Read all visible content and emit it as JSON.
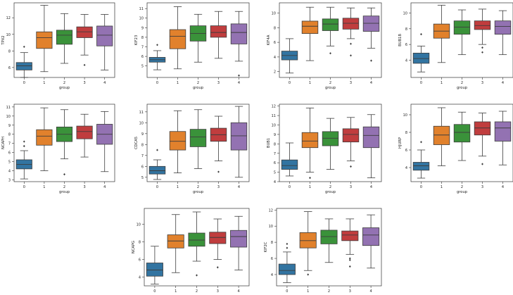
{
  "colors": {
    "g0": "#3274a1",
    "g1": "#e1812c",
    "g2": "#3a923a",
    "g3": "#c03d3e",
    "g4": "#9372b2"
  },
  "chart_data": [
    {
      "type": "boxplot",
      "ylabel": "TPX2",
      "xlabel": "group",
      "categories": [
        "0",
        "1",
        "2",
        "3",
        "4"
      ],
      "ylim": [
        4.8,
        13.8
      ],
      "yticks": [
        6,
        8,
        10,
        12
      ],
      "boxes": [
        {
          "whislo": 4.8,
          "q1": 5.7,
          "med": 6.2,
          "q3": 6.6,
          "whishi": 7.8,
          "fliers": [
            8.5
          ]
        },
        {
          "whislo": 5.5,
          "q1": 8.3,
          "med": 9.6,
          "q3": 10.3,
          "whishi": 13.5,
          "fliers": []
        },
        {
          "whislo": 6.5,
          "q1": 8.8,
          "med": 9.9,
          "q3": 10.5,
          "whishi": 12.5,
          "fliers": []
        },
        {
          "whislo": 7.5,
          "q1": 9.6,
          "med": 10.3,
          "q3": 10.9,
          "whishi": 12.4,
          "fliers": [
            6.3
          ]
        },
        {
          "whislo": 5.7,
          "q1": 8.6,
          "med": 9.9,
          "q3": 11.0,
          "whishi": 12.4,
          "fliers": []
        }
      ]
    },
    {
      "type": "boxplot",
      "ylabel": "KIF23",
      "xlabel": "group",
      "categories": [
        "0",
        "1",
        "2",
        "3",
        "4"
      ],
      "ylim": [
        3.8,
        11.6
      ],
      "yticks": [
        5,
        6,
        7,
        8,
        9,
        10,
        11
      ],
      "boxes": [
        {
          "whislo": 4.6,
          "q1": 5.4,
          "med": 5.65,
          "q3": 5.9,
          "whishi": 6.6,
          "fliers": [
            7.2
          ]
        },
        {
          "whislo": 4.7,
          "q1": 6.8,
          "med": 8.1,
          "q3": 8.8,
          "whishi": 11.2,
          "fliers": []
        },
        {
          "whislo": 5.4,
          "q1": 7.6,
          "med": 8.4,
          "q3": 9.2,
          "whishi": 10.4,
          "fliers": []
        },
        {
          "whislo": 5.8,
          "q1": 8.0,
          "med": 8.5,
          "q3": 9.2,
          "whishi": 10.7,
          "fliers": []
        },
        {
          "whislo": 5.5,
          "q1": 7.3,
          "med": 8.5,
          "q3": 9.4,
          "whishi": 10.7,
          "fliers": [
            4.0
          ]
        }
      ]
    },
    {
      "type": "boxplot",
      "ylabel": "KIF4A",
      "xlabel": "group",
      "categories": [
        "0",
        "1",
        "2",
        "3",
        "4"
      ],
      "ylim": [
        1.2,
        11.4
      ],
      "yticks": [
        2,
        4,
        6,
        8,
        10
      ],
      "boxes": [
        {
          "whislo": 1.8,
          "q1": 3.6,
          "med": 4.2,
          "q3": 4.8,
          "whishi": 6.5,
          "fliers": []
        },
        {
          "whislo": 3.5,
          "q1": 7.2,
          "med": 8.2,
          "q3": 8.9,
          "whishi": 10.8,
          "fliers": []
        },
        {
          "whislo": 5.5,
          "q1": 7.6,
          "med": 8.5,
          "q3": 9.2,
          "whishi": 10.8,
          "fliers": [
            4.5
          ]
        },
        {
          "whislo": 6.5,
          "q1": 7.8,
          "med": 8.6,
          "q3": 9.3,
          "whishi": 10.7,
          "fliers": [
            5.8,
            4.2
          ]
        },
        {
          "whislo": 5.2,
          "q1": 7.5,
          "med": 8.6,
          "q3": 9.6,
          "whishi": 10.7,
          "fliers": [
            3.5
          ]
        }
      ]
    },
    {
      "type": "boxplot",
      "ylabel": "BUB1B",
      "xlabel": "group",
      "categories": [
        "0",
        "1",
        "2",
        "3",
        "4"
      ],
      "ylim": [
        1.8,
        11.3
      ],
      "yticks": [
        4,
        6,
        8,
        10
      ],
      "boxes": [
        {
          "whislo": 2.5,
          "q1": 3.6,
          "med": 4.2,
          "q3": 4.9,
          "whishi": 5.8,
          "fliers": [
            7.3
          ]
        },
        {
          "whislo": 3.7,
          "q1": 6.8,
          "med": 7.7,
          "q3": 8.6,
          "whishi": 11.0,
          "fliers": []
        },
        {
          "whislo": 4.7,
          "q1": 7.3,
          "med": 8.2,
          "q3": 9.0,
          "whishi": 10.4,
          "fliers": []
        },
        {
          "whislo": 6.0,
          "q1": 7.9,
          "med": 8.4,
          "q3": 9.0,
          "whishi": 10.5,
          "fliers": [
            5.6,
            5.0
          ]
        },
        {
          "whislo": 4.7,
          "q1": 7.3,
          "med": 8.3,
          "q3": 9.0,
          "whishi": 10.3,
          "fliers": []
        }
      ]
    },
    {
      "type": "boxplot",
      "ylabel": "NCAPH",
      "xlabel": "group",
      "categories": [
        "0",
        "1",
        "2",
        "3",
        "4"
      ],
      "ylim": [
        2.8,
        11.3
      ],
      "yticks": [
        3,
        4,
        5,
        6,
        7,
        8,
        9,
        10,
        11
      ],
      "boxes": [
        {
          "whislo": 3.1,
          "q1": 4.2,
          "med": 4.7,
          "q3": 5.2,
          "whishi": 6.2,
          "fliers": [
            7.2,
            6.7
          ]
        },
        {
          "whislo": 4.0,
          "q1": 6.8,
          "med": 7.8,
          "q3": 8.5,
          "whishi": 10.9,
          "fliers": []
        },
        {
          "whislo": 5.3,
          "q1": 7.2,
          "med": 8.0,
          "q3": 8.8,
          "whishi": 10.7,
          "fliers": [
            3.6
          ]
        },
        {
          "whislo": 5.5,
          "q1": 7.5,
          "med": 8.3,
          "q3": 8.9,
          "whishi": 10.2,
          "fliers": []
        },
        {
          "whislo": 3.9,
          "q1": 6.9,
          "med": 8.0,
          "q3": 9.1,
          "whishi": 10.5,
          "fliers": []
        }
      ]
    },
    {
      "type": "boxplot",
      "ylabel": "CDCA5",
      "xlabel": "group",
      "categories": [
        "0",
        "1",
        "2",
        "3",
        "4"
      ],
      "ylim": [
        4.6,
        11.7
      ],
      "yticks": [
        5,
        6,
        7,
        8,
        9,
        10,
        11
      ],
      "boxes": [
        {
          "whislo": 4.8,
          "q1": 5.3,
          "med": 5.6,
          "q3": 6.0,
          "whishi": 6.6,
          "fliers": [
            7.5
          ]
        },
        {
          "whislo": 5.4,
          "q1": 7.5,
          "med": 8.3,
          "q3": 9.2,
          "whishi": 11.1,
          "fliers": []
        },
        {
          "whislo": 5.8,
          "q1": 7.8,
          "med": 8.7,
          "q3": 9.4,
          "whishi": 11.2,
          "fliers": []
        },
        {
          "whislo": 6.5,
          "q1": 8.3,
          "med": 8.9,
          "q3": 9.5,
          "whishi": 10.6,
          "fliers": [
            5.5
          ]
        },
        {
          "whislo": 5.0,
          "q1": 7.5,
          "med": 8.8,
          "q3": 10.0,
          "whishi": 11.5,
          "fliers": []
        }
      ]
    },
    {
      "type": "boxplot",
      "ylabel": "BUB1",
      "xlabel": "group",
      "categories": [
        "0",
        "1",
        "2",
        "3",
        "4"
      ],
      "ylim": [
        4.0,
        12.2
      ],
      "yticks": [
        4,
        5,
        6,
        7,
        8,
        9,
        10,
        11,
        12
      ],
      "boxes": [
        {
          "whislo": 4.6,
          "q1": 5.3,
          "med": 5.7,
          "q3": 6.3,
          "whishi": 8.1,
          "fliers": []
        },
        {
          "whislo": 5.0,
          "q1": 7.6,
          "med": 8.3,
          "q3": 9.2,
          "whishi": 11.8,
          "fliers": [
            4.4
          ]
        },
        {
          "whislo": 5.3,
          "q1": 7.8,
          "med": 8.6,
          "q3": 9.3,
          "whishi": 10.7,
          "fliers": []
        },
        {
          "whislo": 6.2,
          "q1": 8.2,
          "med": 9.0,
          "q3": 9.6,
          "whishi": 10.8,
          "fliers": [
            5.6
          ]
        },
        {
          "whislo": 4.4,
          "q1": 7.6,
          "med": 8.9,
          "q3": 9.8,
          "whishi": 11.1,
          "fliers": []
        }
      ]
    },
    {
      "type": "boxplot",
      "ylabel": "HJURP",
      "xlabel": "group",
      "categories": [
        "0",
        "1",
        "2",
        "3",
        "4"
      ],
      "ylim": [
        2.4,
        11.2
      ],
      "yticks": [
        4,
        6,
        8,
        10
      ],
      "boxes": [
        {
          "whislo": 2.8,
          "q1": 3.7,
          "med": 4.2,
          "q3": 4.6,
          "whishi": 6.0,
          "fliers": [
            6.9
          ]
        },
        {
          "whislo": 4.2,
          "q1": 6.6,
          "med": 7.7,
          "q3": 8.7,
          "whishi": 10.8,
          "fliers": []
        },
        {
          "whislo": 4.8,
          "q1": 6.9,
          "med": 8.0,
          "q3": 8.9,
          "whishi": 10.3,
          "fliers": []
        },
        {
          "whislo": 5.3,
          "q1": 7.7,
          "med": 8.5,
          "q3": 9.2,
          "whishi": 10.2,
          "fliers": [
            4.4
          ]
        },
        {
          "whislo": 4.3,
          "q1": 7.0,
          "med": 8.5,
          "q3": 9.2,
          "whishi": 10.4,
          "fliers": []
        }
      ]
    },
    {
      "type": "boxplot",
      "ylabel": "NCAPG",
      "xlabel": "group",
      "categories": [
        "0",
        "1",
        "2",
        "3",
        "4"
      ],
      "ylim": [
        3.0,
        11.8
      ],
      "yticks": [
        4,
        6,
        8,
        10
      ],
      "boxes": [
        {
          "whislo": 3.2,
          "q1": 4.1,
          "med": 4.8,
          "q3": 5.6,
          "whishi": 7.5,
          "fliers": []
        },
        {
          "whislo": 4.5,
          "q1": 7.3,
          "med": 8.1,
          "q3": 8.8,
          "whishi": 11.1,
          "fliers": []
        },
        {
          "whislo": 5.8,
          "q1": 7.5,
          "med": 8.2,
          "q3": 9.0,
          "whishi": 11.4,
          "fliers": [
            4.2
          ]
        },
        {
          "whislo": 6.0,
          "q1": 7.8,
          "med": 8.5,
          "q3": 9.1,
          "whishi": 10.6,
          "fliers": [
            5.1
          ]
        },
        {
          "whislo": 4.8,
          "q1": 7.4,
          "med": 8.6,
          "q3": 9.3,
          "whishi": 10.9,
          "fliers": []
        }
      ]
    },
    {
      "type": "boxplot",
      "ylabel": "KIF2C",
      "xlabel": "group",
      "categories": [
        "0",
        "1",
        "2",
        "3",
        "4"
      ],
      "ylim": [
        2.6,
        12.2
      ],
      "yticks": [
        4,
        6,
        8,
        10,
        12
      ],
      "boxes": [
        {
          "whislo": 3.0,
          "q1": 4.0,
          "med": 4.5,
          "q3": 5.3,
          "whishi": 6.8,
          "fliers": [
            7.8,
            7.3
          ]
        },
        {
          "whislo": 4.5,
          "q1": 7.3,
          "med": 8.2,
          "q3": 9.2,
          "whishi": 11.8,
          "fliers": [
            4.0
          ]
        },
        {
          "whislo": 5.5,
          "q1": 7.8,
          "med": 8.7,
          "q3": 9.5,
          "whishi": 10.9,
          "fliers": []
        },
        {
          "whislo": 6.5,
          "q1": 8.2,
          "med": 8.9,
          "q3": 9.4,
          "whishi": 10.9,
          "fliers": [
            6.0,
            5.8,
            5.0
          ]
        },
        {
          "whislo": 4.8,
          "q1": 7.6,
          "med": 8.9,
          "q3": 9.8,
          "whishi": 11.4,
          "fliers": []
        }
      ]
    }
  ]
}
